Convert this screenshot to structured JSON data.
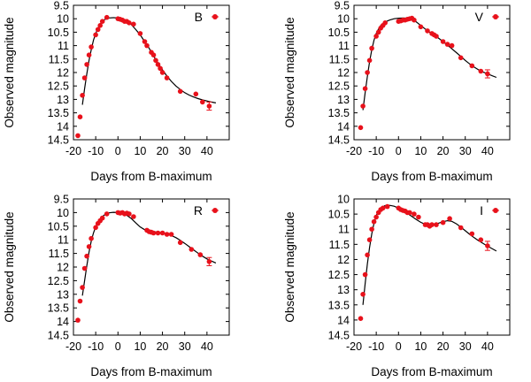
{
  "chart_data": [
    {
      "type": "scatter",
      "band": "B",
      "xlabel": "Days from B-maximum",
      "ylabel": "Observed magnitude",
      "xlim": [
        -20,
        50
      ],
      "ylim": [
        9.5,
        14.5
      ],
      "xticks": [
        "-20",
        "-10",
        "0",
        "10",
        "20",
        "30",
        "40"
      ],
      "yticks": [
        "9.5",
        "10",
        "10.5",
        "11",
        "11.5",
        "12",
        "12.5",
        "13",
        "13.5",
        "14",
        "14.5"
      ],
      "legend": "top-right",
      "points": [
        [
          -18,
          14.35
        ],
        [
          -17,
          13.65
        ],
        [
          -16,
          12.85
        ],
        [
          -15,
          12.2
        ],
        [
          -14,
          11.7
        ],
        [
          -13,
          11.35
        ],
        [
          -12,
          11.05
        ],
        [
          -10,
          10.6
        ],
        [
          -9,
          10.4
        ],
        [
          -8,
          10.25
        ],
        [
          -7,
          10.1
        ],
        [
          -5,
          9.95
        ],
        [
          0,
          10.0
        ],
        [
          1,
          10.02
        ],
        [
          2,
          10.05
        ],
        [
          3,
          10.1
        ],
        [
          4,
          10.1
        ],
        [
          5,
          10.15
        ],
        [
          7,
          10.2
        ],
        [
          10,
          10.55
        ],
        [
          12,
          10.85
        ],
        [
          13,
          11.0
        ],
        [
          15,
          11.25
        ],
        [
          16,
          11.35
        ],
        [
          17,
          11.55
        ],
        [
          18,
          11.7
        ],
        [
          19,
          11.85
        ],
        [
          20,
          12.0
        ],
        [
          22,
          12.2
        ],
        [
          28,
          12.7
        ],
        [
          35,
          12.8
        ],
        [
          38,
          13.1
        ],
        [
          41,
          13.25
        ]
      ],
      "error_bar": {
        "x": 41,
        "y": 13.25,
        "err": 0.15
      },
      "model_curve": [
        [
          -16,
          13.2
        ],
        [
          -15,
          12.6
        ],
        [
          -14,
          12.05
        ],
        [
          -13,
          11.55
        ],
        [
          -12,
          11.15
        ],
        [
          -11,
          10.8
        ],
        [
          -10,
          10.55
        ],
        [
          -9,
          10.35
        ],
        [
          -8,
          10.2
        ],
        [
          -7,
          10.1
        ],
        [
          -6,
          10.03
        ],
        [
          -4,
          9.97
        ],
        [
          -2,
          9.96
        ],
        [
          0,
          9.97
        ],
        [
          2,
          10.02
        ],
        [
          4,
          10.1
        ],
        [
          6,
          10.22
        ],
        [
          8,
          10.4
        ],
        [
          10,
          10.6
        ],
        [
          12,
          10.85
        ],
        [
          14,
          11.1
        ],
        [
          16,
          11.38
        ],
        [
          18,
          11.65
        ],
        [
          20,
          11.9
        ],
        [
          22,
          12.13
        ],
        [
          24,
          12.33
        ],
        [
          26,
          12.5
        ],
        [
          28,
          12.63
        ],
        [
          30,
          12.75
        ],
        [
          32,
          12.84
        ],
        [
          34,
          12.91
        ],
        [
          36,
          12.97
        ],
        [
          38,
          13.02
        ],
        [
          40,
          13.06
        ],
        [
          42,
          13.1
        ],
        [
          44,
          13.13
        ]
      ]
    },
    {
      "type": "scatter",
      "band": "V",
      "xlabel": "Days from B-maximum",
      "ylabel": "Observed magnitude",
      "xlim": [
        -20,
        50
      ],
      "ylim": [
        9.5,
        14.5
      ],
      "xticks": [
        "-20",
        "-10",
        "0",
        "10",
        "20",
        "30",
        "40"
      ],
      "yticks": [
        "9.5",
        "10",
        "10.5",
        "11",
        "11.5",
        "12",
        "12.5",
        "13",
        "13.5",
        "14",
        "14.5"
      ],
      "legend": "top-right",
      "points": [
        [
          -17,
          14.05
        ],
        [
          -16,
          13.25
        ],
        [
          -15,
          12.6
        ],
        [
          -14,
          12.0
        ],
        [
          -13,
          11.55
        ],
        [
          -12,
          11.1
        ],
        [
          -10,
          10.65
        ],
        [
          -9,
          10.5
        ],
        [
          -8,
          10.35
        ],
        [
          -7,
          10.25
        ],
        [
          -6,
          10.15
        ],
        [
          0,
          10.1
        ],
        [
          1,
          10.08
        ],
        [
          2,
          10.05
        ],
        [
          3,
          10.05
        ],
        [
          4,
          10.02
        ],
        [
          5,
          10.0
        ],
        [
          6,
          9.98
        ],
        [
          7,
          10.05
        ],
        [
          10,
          10.3
        ],
        [
          13,
          10.45
        ],
        [
          15,
          10.55
        ],
        [
          16,
          10.6
        ],
        [
          17,
          10.65
        ],
        [
          20,
          10.85
        ],
        [
          22,
          10.95
        ],
        [
          24,
          11.0
        ],
        [
          28,
          11.45
        ],
        [
          33,
          11.75
        ],
        [
          37,
          11.95
        ],
        [
          40,
          12.05
        ]
      ],
      "error_bar": {
        "x": 40,
        "y": 12.05,
        "err": 0.15
      },
      "model_curve": [
        [
          -16,
          13.4
        ],
        [
          -15,
          12.75
        ],
        [
          -14,
          12.15
        ],
        [
          -13,
          11.6
        ],
        [
          -12,
          11.15
        ],
        [
          -11,
          10.8
        ],
        [
          -10,
          10.55
        ],
        [
          -9,
          10.38
        ],
        [
          -8,
          10.25
        ],
        [
          -6,
          10.12
        ],
        [
          -4,
          10.05
        ],
        [
          -2,
          10.0
        ],
        [
          0,
          9.98
        ],
        [
          2,
          9.97
        ],
        [
          4,
          9.98
        ],
        [
          6,
          10.03
        ],
        [
          8,
          10.12
        ],
        [
          10,
          10.25
        ],
        [
          12,
          10.38
        ],
        [
          14,
          10.5
        ],
        [
          16,
          10.6
        ],
        [
          18,
          10.72
        ],
        [
          20,
          10.85
        ],
        [
          22,
          10.98
        ],
        [
          24,
          11.12
        ],
        [
          26,
          11.26
        ],
        [
          28,
          11.4
        ],
        [
          30,
          11.55
        ],
        [
          32,
          11.68
        ],
        [
          34,
          11.8
        ],
        [
          36,
          11.9
        ],
        [
          38,
          11.98
        ],
        [
          40,
          12.05
        ],
        [
          42,
          12.12
        ],
        [
          44,
          12.18
        ]
      ]
    },
    {
      "type": "scatter",
      "band": "R",
      "xlabel": "Days from B-maximum",
      "ylabel": "Observed magnitude",
      "xlim": [
        -20,
        50
      ],
      "ylim": [
        9.5,
        14.5
      ],
      "xticks": [
        "-20",
        "-10",
        "0",
        "10",
        "20",
        "30",
        "40"
      ],
      "yticks": [
        "9.5",
        "10",
        "10.5",
        "11",
        "11.5",
        "12",
        "12.5",
        "13",
        "13.5",
        "14",
        "14.5"
      ],
      "legend": "top-right",
      "points": [
        [
          -18,
          13.95
        ],
        [
          -17,
          13.25
        ],
        [
          -16,
          12.75
        ],
        [
          -15,
          12.05
        ],
        [
          -14,
          11.6
        ],
        [
          -13,
          11.25
        ],
        [
          -12,
          10.95
        ],
        [
          -10,
          10.55
        ],
        [
          -9,
          10.4
        ],
        [
          -8,
          10.3
        ],
        [
          -7,
          10.2
        ],
        [
          -5,
          10.05
        ],
        [
          0,
          10.0
        ],
        [
          1,
          10.02
        ],
        [
          2,
          10.0
        ],
        [
          3,
          10.05
        ],
        [
          4,
          10.02
        ],
        [
          5,
          10.05
        ],
        [
          7,
          10.15
        ],
        [
          13,
          10.65
        ],
        [
          14,
          10.7
        ],
        [
          15,
          10.72
        ],
        [
          16,
          10.75
        ],
        [
          18,
          10.75
        ],
        [
          20,
          10.75
        ],
        [
          22,
          10.8
        ],
        [
          24,
          10.8
        ],
        [
          28,
          11.1
        ],
        [
          33,
          11.35
        ],
        [
          37,
          11.55
        ],
        [
          41,
          11.8
        ]
      ],
      "error_bar": {
        "x": 41,
        "y": 11.8,
        "err": 0.15
      },
      "model_curve": [
        [
          -16,
          13.05
        ],
        [
          -15,
          12.5
        ],
        [
          -14,
          11.95
        ],
        [
          -13,
          11.45
        ],
        [
          -12,
          11.05
        ],
        [
          -11,
          10.75
        ],
        [
          -10,
          10.52
        ],
        [
          -9,
          10.35
        ],
        [
          -8,
          10.22
        ],
        [
          -6,
          10.08
        ],
        [
          -4,
          10.01
        ],
        [
          -2,
          9.99
        ],
        [
          0,
          10.0
        ],
        [
          2,
          10.03
        ],
        [
          4,
          10.1
        ],
        [
          6,
          10.22
        ],
        [
          8,
          10.38
        ],
        [
          10,
          10.53
        ],
        [
          12,
          10.63
        ],
        [
          14,
          10.68
        ],
        [
          16,
          10.7
        ],
        [
          18,
          10.72
        ],
        [
          20,
          10.75
        ],
        [
          22,
          10.79
        ],
        [
          24,
          10.84
        ],
        [
          26,
          10.92
        ],
        [
          28,
          11.02
        ],
        [
          30,
          11.13
        ],
        [
          32,
          11.25
        ],
        [
          34,
          11.37
        ],
        [
          36,
          11.49
        ],
        [
          38,
          11.6
        ],
        [
          40,
          11.7
        ],
        [
          42,
          11.78
        ],
        [
          44,
          11.85
        ]
      ]
    },
    {
      "type": "scatter",
      "band": "I",
      "xlabel": "Days from B-maximum",
      "ylabel": "Observed magnitude",
      "xlim": [
        -20,
        50
      ],
      "ylim": [
        10,
        14.5
      ],
      "xticks": [
        "-20",
        "-10",
        "0",
        "10",
        "20",
        "30",
        "40"
      ],
      "yticks": [
        "10",
        "10.5",
        "11",
        "11.5",
        "12",
        "12.5",
        "13",
        "13.5",
        "14",
        "14.5"
      ],
      "legend": "top-right",
      "points": [
        [
          -17,
          13.95
        ],
        [
          -16,
          13.15
        ],
        [
          -15,
          12.5
        ],
        [
          -14,
          11.85
        ],
        [
          -13,
          11.35
        ],
        [
          -12,
          11.0
        ],
        [
          -11,
          10.75
        ],
        [
          -10,
          10.6
        ],
        [
          -9,
          10.45
        ],
        [
          -8,
          10.35
        ],
        [
          -7,
          10.3
        ],
        [
          -5,
          10.25
        ],
        [
          0,
          10.3
        ],
        [
          1,
          10.35
        ],
        [
          2,
          10.38
        ],
        [
          3,
          10.4
        ],
        [
          4,
          10.45
        ],
        [
          5,
          10.45
        ],
        [
          7,
          10.5
        ],
        [
          9,
          10.6
        ],
        [
          12,
          10.85
        ],
        [
          13,
          10.85
        ],
        [
          14,
          10.9
        ],
        [
          15,
          10.85
        ],
        [
          17,
          10.85
        ],
        [
          20,
          10.78
        ],
        [
          23,
          10.65
        ],
        [
          28,
          10.95
        ],
        [
          33,
          11.15
        ],
        [
          37,
          11.35
        ],
        [
          40,
          11.55
        ]
      ],
      "error_bar": {
        "x": 40,
        "y": 11.55,
        "err": 0.15
      },
      "model_curve": [
        [
          -16,
          13.5
        ],
        [
          -15,
          12.8
        ],
        [
          -14,
          12.15
        ],
        [
          -13,
          11.6
        ],
        [
          -12,
          11.15
        ],
        [
          -11,
          10.8
        ],
        [
          -10,
          10.55
        ],
        [
          -9,
          10.4
        ],
        [
          -8,
          10.3
        ],
        [
          -6,
          10.22
        ],
        [
          -4,
          10.21
        ],
        [
          -2,
          10.24
        ],
        [
          0,
          10.3
        ],
        [
          2,
          10.38
        ],
        [
          4,
          10.48
        ],
        [
          6,
          10.58
        ],
        [
          8,
          10.68
        ],
        [
          10,
          10.77
        ],
        [
          12,
          10.84
        ],
        [
          14,
          10.87
        ],
        [
          16,
          10.85
        ],
        [
          18,
          10.8
        ],
        [
          20,
          10.75
        ],
        [
          22,
          10.72
        ],
        [
          24,
          10.74
        ],
        [
          26,
          10.82
        ],
        [
          28,
          10.93
        ],
        [
          30,
          11.05
        ],
        [
          32,
          11.17
        ],
        [
          34,
          11.28
        ],
        [
          36,
          11.38
        ],
        [
          38,
          11.47
        ],
        [
          40,
          11.56
        ],
        [
          42,
          11.64
        ],
        [
          44,
          11.72
        ]
      ]
    }
  ]
}
